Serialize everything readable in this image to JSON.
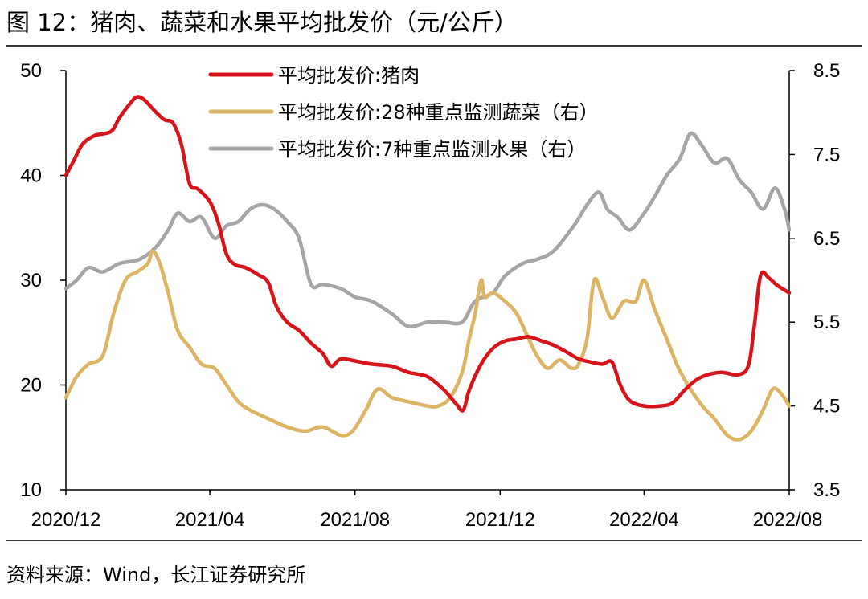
{
  "header": {
    "title": "图 12：猪肉、蔬菜和水果平均批发价（元/公斤）"
  },
  "footer": {
    "source": "资料来源：Wind，长江证券研究所"
  },
  "chart_data": {
    "type": "line",
    "title": "",
    "x_labels": [
      "2020/12",
      "2021/04",
      "2021/08",
      "2021/12",
      "2022/04",
      "2022/08"
    ],
    "x_range": [
      "2020-12-01",
      "2022-08-01"
    ],
    "y_left": {
      "ylim": [
        10,
        50
      ],
      "ticks": [
        10,
        20,
        30,
        40,
        50
      ]
    },
    "y_right": {
      "ylim": [
        3.5,
        8.5
      ],
      "ticks": [
        "3.5",
        "4.5",
        "5.5",
        "6.5",
        "7.5",
        "8.5"
      ]
    },
    "grid": false,
    "legend_position": "top-center",
    "series": [
      {
        "name": "平均批发价:猪肉",
        "axis": "left",
        "color": "#d7141a",
        "points": [
          [
            "2020-12-01",
            40.0
          ],
          [
            "2020-12-08",
            41.5
          ],
          [
            "2020-12-15",
            43.0
          ],
          [
            "2020-12-25",
            43.8
          ],
          [
            "2021-01-08",
            44.2
          ],
          [
            "2021-01-15",
            45.5
          ],
          [
            "2021-01-25",
            47.0
          ],
          [
            "2021-01-30",
            47.5
          ],
          [
            "2021-02-05",
            47.2
          ],
          [
            "2021-02-15",
            46.0
          ],
          [
            "2021-02-22",
            45.3
          ],
          [
            "2021-03-01",
            45.0
          ],
          [
            "2021-03-08",
            43.0
          ],
          [
            "2021-03-15",
            39.2
          ],
          [
            "2021-03-22",
            38.7
          ],
          [
            "2021-04-01",
            37.5
          ],
          [
            "2021-04-08",
            35.5
          ],
          [
            "2021-04-15",
            32.5
          ],
          [
            "2021-04-22",
            31.5
          ],
          [
            "2021-05-01",
            31.2
          ],
          [
            "2021-05-12",
            30.5
          ],
          [
            "2021-05-20",
            29.8
          ],
          [
            "2021-05-27",
            27.5
          ],
          [
            "2021-06-05",
            26.0
          ],
          [
            "2021-06-15",
            25.2
          ],
          [
            "2021-06-25",
            24.0
          ],
          [
            "2021-07-05",
            23.0
          ],
          [
            "2021-07-12",
            21.8
          ],
          [
            "2021-07-20",
            22.5
          ],
          [
            "2021-08-01",
            22.3
          ],
          [
            "2021-08-15",
            22.0
          ],
          [
            "2021-09-01",
            21.8
          ],
          [
            "2021-09-15",
            21.2
          ],
          [
            "2021-10-01",
            20.8
          ],
          [
            "2021-10-15",
            19.5
          ],
          [
            "2021-10-25",
            18.2
          ],
          [
            "2021-10-31",
            17.6
          ],
          [
            "2021-11-05",
            19.5
          ],
          [
            "2021-11-15",
            22.0
          ],
          [
            "2021-11-25",
            23.5
          ],
          [
            "2021-12-05",
            24.2
          ],
          [
            "2021-12-15",
            24.4
          ],
          [
            "2021-12-25",
            24.6
          ],
          [
            "2022-01-05",
            24.2
          ],
          [
            "2022-01-15",
            23.8
          ],
          [
            "2022-01-25",
            23.2
          ],
          [
            "2022-02-05",
            22.5
          ],
          [
            "2022-02-15",
            22.2
          ],
          [
            "2022-02-25",
            22.0
          ],
          [
            "2022-03-05",
            22.2
          ],
          [
            "2022-03-12",
            20.0
          ],
          [
            "2022-03-20",
            18.5
          ],
          [
            "2022-04-01",
            18.0
          ],
          [
            "2022-04-15",
            18.0
          ],
          [
            "2022-04-25",
            18.3
          ],
          [
            "2022-05-05",
            19.5
          ],
          [
            "2022-05-15",
            20.5
          ],
          [
            "2022-05-25",
            21.0
          ],
          [
            "2022-06-05",
            21.2
          ],
          [
            "2022-06-20",
            21.0
          ],
          [
            "2022-06-28",
            22.0
          ],
          [
            "2022-07-03",
            26.0
          ],
          [
            "2022-07-08",
            30.5
          ],
          [
            "2022-07-15",
            30.2
          ],
          [
            "2022-07-22",
            29.5
          ],
          [
            "2022-08-01",
            28.8
          ]
        ]
      },
      {
        "name": "平均批发价:28种重点监测蔬菜（右）",
        "axis": "right",
        "color": "#dcb464",
        "points": [
          [
            "2020-12-01",
            4.6
          ],
          [
            "2020-12-10",
            4.85
          ],
          [
            "2020-12-20",
            5.0
          ],
          [
            "2021-01-01",
            5.1
          ],
          [
            "2021-01-10",
            5.6
          ],
          [
            "2021-01-20",
            6.0
          ],
          [
            "2021-01-30",
            6.1
          ],
          [
            "2021-02-08",
            6.2
          ],
          [
            "2021-02-12",
            6.35
          ],
          [
            "2021-02-18",
            6.2
          ],
          [
            "2021-02-25",
            5.85
          ],
          [
            "2021-03-05",
            5.4
          ],
          [
            "2021-03-15",
            5.2
          ],
          [
            "2021-03-25",
            5.0
          ],
          [
            "2021-04-05",
            4.95
          ],
          [
            "2021-04-15",
            4.75
          ],
          [
            "2021-04-25",
            4.55
          ],
          [
            "2021-05-05",
            4.45
          ],
          [
            "2021-05-20",
            4.35
          ],
          [
            "2021-06-05",
            4.25
          ],
          [
            "2021-06-20",
            4.2
          ],
          [
            "2021-07-05",
            4.25
          ],
          [
            "2021-07-20",
            4.15
          ],
          [
            "2021-07-30",
            4.2
          ],
          [
            "2021-08-10",
            4.45
          ],
          [
            "2021-08-20",
            4.7
          ],
          [
            "2021-09-01",
            4.6
          ],
          [
            "2021-09-15",
            4.55
          ],
          [
            "2021-10-01",
            4.5
          ],
          [
            "2021-10-10",
            4.5
          ],
          [
            "2021-10-20",
            4.6
          ],
          [
            "2021-10-30",
            4.9
          ],
          [
            "2021-11-05",
            5.3
          ],
          [
            "2021-11-10",
            5.6
          ],
          [
            "2021-11-15",
            6.0
          ],
          [
            "2021-11-18",
            5.8
          ],
          [
            "2021-11-25",
            5.85
          ],
          [
            "2021-12-05",
            5.75
          ],
          [
            "2021-12-15",
            5.6
          ],
          [
            "2021-12-25",
            5.3
          ],
          [
            "2022-01-01",
            5.1
          ],
          [
            "2022-01-10",
            4.95
          ],
          [
            "2022-01-20",
            5.05
          ],
          [
            "2022-01-30",
            4.95
          ],
          [
            "2022-02-05",
            5.0
          ],
          [
            "2022-02-12",
            5.3
          ],
          [
            "2022-02-18",
            6.0
          ],
          [
            "2022-02-25",
            5.8
          ],
          [
            "2022-03-05",
            5.55
          ],
          [
            "2022-03-15",
            5.75
          ],
          [
            "2022-03-25",
            5.75
          ],
          [
            "2022-04-01",
            6.0
          ],
          [
            "2022-04-10",
            5.65
          ],
          [
            "2022-04-20",
            5.3
          ],
          [
            "2022-04-30",
            4.95
          ],
          [
            "2022-05-10",
            4.7
          ],
          [
            "2022-05-20",
            4.5
          ],
          [
            "2022-05-30",
            4.35
          ],
          [
            "2022-06-10",
            4.15
          ],
          [
            "2022-06-20",
            4.1
          ],
          [
            "2022-06-30",
            4.2
          ],
          [
            "2022-07-10",
            4.45
          ],
          [
            "2022-07-18",
            4.7
          ],
          [
            "2022-07-25",
            4.65
          ],
          [
            "2022-08-01",
            4.5
          ]
        ]
      },
      {
        "name": "平均批发价:7种重点监测水果（右）",
        "axis": "right",
        "color": "#a5a5a5",
        "points": [
          [
            "2020-12-01",
            5.9
          ],
          [
            "2020-12-10",
            6.0
          ],
          [
            "2020-12-20",
            6.15
          ],
          [
            "2021-01-01",
            6.1
          ],
          [
            "2021-01-15",
            6.2
          ],
          [
            "2021-02-01",
            6.25
          ],
          [
            "2021-02-15",
            6.4
          ],
          [
            "2021-02-25",
            6.6
          ],
          [
            "2021-03-05",
            6.8
          ],
          [
            "2021-03-15",
            6.7
          ],
          [
            "2021-03-25",
            6.75
          ],
          [
            "2021-04-05",
            6.5
          ],
          [
            "2021-04-15",
            6.65
          ],
          [
            "2021-04-25",
            6.7
          ],
          [
            "2021-05-05",
            6.85
          ],
          [
            "2021-05-15",
            6.9
          ],
          [
            "2021-05-25",
            6.85
          ],
          [
            "2021-06-05",
            6.7
          ],
          [
            "2021-06-15",
            6.5
          ],
          [
            "2021-06-25",
            5.95
          ],
          [
            "2021-07-05",
            5.95
          ],
          [
            "2021-07-20",
            5.9
          ],
          [
            "2021-08-01",
            5.8
          ],
          [
            "2021-08-15",
            5.75
          ],
          [
            "2021-09-01",
            5.6
          ],
          [
            "2021-09-15",
            5.45
          ],
          [
            "2021-10-01",
            5.5
          ],
          [
            "2021-10-15",
            5.5
          ],
          [
            "2021-10-30",
            5.5
          ],
          [
            "2021-11-10",
            5.75
          ],
          [
            "2021-11-25",
            5.85
          ],
          [
            "2021-12-05",
            6.05
          ],
          [
            "2021-12-20",
            6.2
          ],
          [
            "2022-01-01",
            6.25
          ],
          [
            "2022-01-15",
            6.35
          ],
          [
            "2022-02-01",
            6.65
          ],
          [
            "2022-02-12",
            6.9
          ],
          [
            "2022-02-22",
            7.05
          ],
          [
            "2022-03-01",
            6.85
          ],
          [
            "2022-03-10",
            6.75
          ],
          [
            "2022-03-20",
            6.6
          ],
          [
            "2022-04-01",
            6.8
          ],
          [
            "2022-04-10",
            7.0
          ],
          [
            "2022-04-20",
            7.25
          ],
          [
            "2022-05-01",
            7.45
          ],
          [
            "2022-05-10",
            7.75
          ],
          [
            "2022-05-20",
            7.6
          ],
          [
            "2022-05-30",
            7.4
          ],
          [
            "2022-06-10",
            7.45
          ],
          [
            "2022-06-20",
            7.2
          ],
          [
            "2022-06-30",
            7.05
          ],
          [
            "2022-07-10",
            6.85
          ],
          [
            "2022-07-20",
            7.1
          ],
          [
            "2022-07-28",
            6.85
          ],
          [
            "2022-08-01",
            6.6
          ]
        ]
      }
    ]
  }
}
